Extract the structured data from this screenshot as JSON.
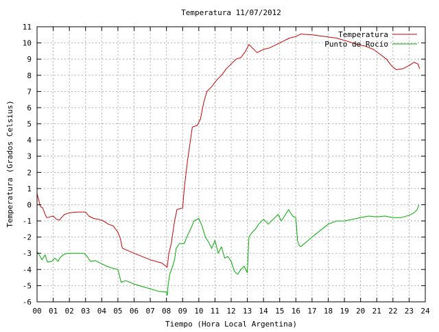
{
  "chart_data": {
    "type": "line",
    "title": "Temperatura 11/07/2012",
    "xlabel": "Tiempo (Hora Local Argentina)",
    "ylabel": "Temperatura (Grados Celsius)",
    "xlim": [
      0,
      24
    ],
    "ylim": [
      -6,
      11
    ],
    "x_ticks": [
      "00",
      "01",
      "02",
      "03",
      "04",
      "05",
      "06",
      "07",
      "08",
      "09",
      "10",
      "11",
      "12",
      "13",
      "14",
      "15",
      "16",
      "17",
      "18",
      "19",
      "20",
      "21",
      "22",
      "23",
      "24"
    ],
    "y_ticks": [
      "-6",
      "-5",
      "-4",
      "-3",
      "-2",
      "-1",
      "0",
      "1",
      "2",
      "3",
      "4",
      "5",
      "6",
      "7",
      "8",
      "9",
      "10",
      "11"
    ],
    "grid": true,
    "legend_position": "top-right",
    "series": [
      {
        "name": "Temperatura",
        "color": "#cc0000",
        "points": [
          [
            0.0,
            0.7
          ],
          [
            0.1,
            0.3
          ],
          [
            0.2,
            -0.1
          ],
          [
            0.35,
            -0.2
          ],
          [
            0.5,
            -0.6
          ],
          [
            0.6,
            -0.8
          ],
          [
            0.8,
            -0.75
          ],
          [
            1.0,
            -0.7
          ],
          [
            1.2,
            -0.9
          ],
          [
            1.4,
            -0.95
          ],
          [
            1.5,
            -0.8
          ],
          [
            1.7,
            -0.6
          ],
          [
            2.0,
            -0.5
          ],
          [
            2.5,
            -0.45
          ],
          [
            3.0,
            -0.45
          ],
          [
            3.2,
            -0.7
          ],
          [
            3.5,
            -0.85
          ],
          [
            3.8,
            -0.9
          ],
          [
            4.1,
            -1.0
          ],
          [
            4.4,
            -1.2
          ],
          [
            4.7,
            -1.3
          ],
          [
            5.0,
            -1.7
          ],
          [
            5.15,
            -2.1
          ],
          [
            5.25,
            -2.6
          ],
          [
            5.3,
            -2.7
          ],
          [
            6.0,
            -3.0
          ],
          [
            7.0,
            -3.4
          ],
          [
            7.7,
            -3.6
          ],
          [
            8.05,
            -3.85
          ],
          [
            8.15,
            -3.0
          ],
          [
            8.3,
            -2.4
          ],
          [
            8.5,
            -1.0
          ],
          [
            8.65,
            -0.3
          ],
          [
            8.8,
            -0.25
          ],
          [
            9.0,
            -0.2
          ],
          [
            9.1,
            1.0
          ],
          [
            9.3,
            2.7
          ],
          [
            9.5,
            4.1
          ],
          [
            9.6,
            4.8
          ],
          [
            9.9,
            4.9
          ],
          [
            10.1,
            5.3
          ],
          [
            10.3,
            6.3
          ],
          [
            10.5,
            7.0
          ],
          [
            10.8,
            7.3
          ],
          [
            11.1,
            7.7
          ],
          [
            11.4,
            8.0
          ],
          [
            11.7,
            8.4
          ],
          [
            12.0,
            8.7
          ],
          [
            12.3,
            9.0
          ],
          [
            12.6,
            9.1
          ],
          [
            12.9,
            9.5
          ],
          [
            13.1,
            9.9
          ],
          [
            13.3,
            9.7
          ],
          [
            13.6,
            9.4
          ],
          [
            14.0,
            9.6
          ],
          [
            14.4,
            9.7
          ],
          [
            14.8,
            9.9
          ],
          [
            15.2,
            10.1
          ],
          [
            15.6,
            10.3
          ],
          [
            16.0,
            10.4
          ],
          [
            16.3,
            10.55
          ],
          [
            17.0,
            10.5
          ],
          [
            17.8,
            10.4
          ],
          [
            18.5,
            10.3
          ],
          [
            19.2,
            10.1
          ],
          [
            19.8,
            9.9
          ],
          [
            20.3,
            9.8
          ],
          [
            20.8,
            9.6
          ],
          [
            21.2,
            9.3
          ],
          [
            21.6,
            9.0
          ],
          [
            21.9,
            8.6
          ],
          [
            22.2,
            8.35
          ],
          [
            22.6,
            8.4
          ],
          [
            23.0,
            8.6
          ],
          [
            23.3,
            8.8
          ],
          [
            23.55,
            8.7
          ],
          [
            23.65,
            8.4
          ]
        ]
      },
      {
        "name": "Punto de Rocío",
        "color": "#00aa00",
        "points": [
          [
            0.0,
            -2.9
          ],
          [
            0.2,
            -3.2
          ],
          [
            0.3,
            -3.4
          ],
          [
            0.5,
            -3.1
          ],
          [
            0.65,
            -3.55
          ],
          [
            0.9,
            -3.5
          ],
          [
            1.1,
            -3.3
          ],
          [
            1.3,
            -3.5
          ],
          [
            1.4,
            -3.3
          ],
          [
            1.6,
            -3.1
          ],
          [
            1.9,
            -3.0
          ],
          [
            2.4,
            -3.0
          ],
          [
            2.9,
            -3.0
          ],
          [
            3.1,
            -3.2
          ],
          [
            3.3,
            -3.5
          ],
          [
            3.6,
            -3.45
          ],
          [
            3.9,
            -3.6
          ],
          [
            4.3,
            -3.8
          ],
          [
            4.6,
            -3.9
          ],
          [
            5.0,
            -4.0
          ],
          [
            5.1,
            -4.4
          ],
          [
            5.2,
            -4.8
          ],
          [
            5.3,
            -4.75
          ],
          [
            5.5,
            -4.7
          ],
          [
            6.0,
            -4.9
          ],
          [
            7.0,
            -5.2
          ],
          [
            7.5,
            -5.35
          ],
          [
            8.0,
            -5.4
          ],
          [
            8.05,
            -5.6
          ],
          [
            8.1,
            -5.0
          ],
          [
            8.2,
            -4.3
          ],
          [
            8.35,
            -3.9
          ],
          [
            8.5,
            -3.4
          ],
          [
            8.6,
            -2.7
          ],
          [
            8.8,
            -2.4
          ],
          [
            9.1,
            -2.4
          ],
          [
            9.3,
            -1.9
          ],
          [
            9.5,
            -1.5
          ],
          [
            9.7,
            -1.0
          ],
          [
            10.0,
            -0.85
          ],
          [
            10.2,
            -1.3
          ],
          [
            10.4,
            -2.0
          ],
          [
            10.6,
            -2.3
          ],
          [
            10.8,
            -2.7
          ],
          [
            11.0,
            -2.2
          ],
          [
            11.2,
            -3.0
          ],
          [
            11.4,
            -2.6
          ],
          [
            11.6,
            -3.3
          ],
          [
            11.8,
            -3.2
          ],
          [
            12.0,
            -3.5
          ],
          [
            12.2,
            -4.1
          ],
          [
            12.4,
            -4.3
          ],
          [
            12.6,
            -4.0
          ],
          [
            12.8,
            -3.8
          ],
          [
            13.0,
            -4.2
          ],
          [
            13.1,
            -2.0
          ],
          [
            13.3,
            -1.7
          ],
          [
            13.5,
            -1.5
          ],
          [
            13.7,
            -1.2
          ],
          [
            14.0,
            -0.9
          ],
          [
            14.3,
            -1.2
          ],
          [
            14.6,
            -0.9
          ],
          [
            14.9,
            -0.6
          ],
          [
            15.1,
            -1.0
          ],
          [
            15.3,
            -0.7
          ],
          [
            15.55,
            -0.3
          ],
          [
            15.8,
            -0.7
          ],
          [
            16.0,
            -0.8
          ],
          [
            16.1,
            -2.2
          ],
          [
            16.2,
            -2.5
          ],
          [
            16.3,
            -2.6
          ],
          [
            17.0,
            -2.0
          ],
          [
            17.5,
            -1.6
          ],
          [
            18.0,
            -1.2
          ],
          [
            18.5,
            -1.0
          ],
          [
            19.0,
            -1.0
          ],
          [
            19.5,
            -0.9
          ],
          [
            20.0,
            -0.8
          ],
          [
            20.5,
            -0.7
          ],
          [
            21.0,
            -0.75
          ],
          [
            21.5,
            -0.7
          ],
          [
            22.0,
            -0.8
          ],
          [
            22.5,
            -0.8
          ],
          [
            23.0,
            -0.65
          ],
          [
            23.3,
            -0.5
          ],
          [
            23.5,
            -0.3
          ],
          [
            23.6,
            0.0
          ]
        ]
      }
    ]
  }
}
